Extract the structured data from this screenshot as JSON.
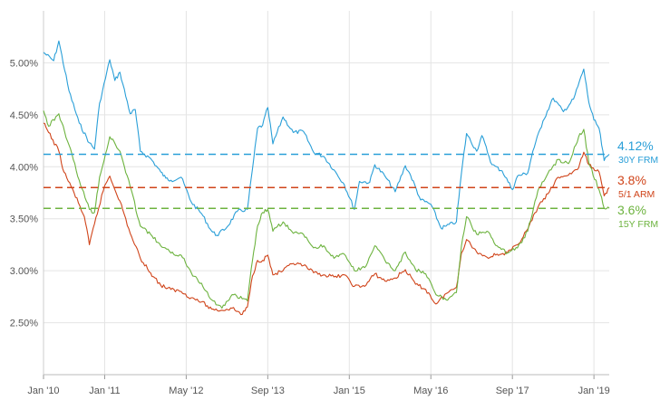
{
  "chart_data": {
    "type": "line",
    "title": "",
    "xlabel": "",
    "ylabel": "",
    "x_range": [
      "2010-01",
      "2019-04"
    ],
    "ylim": [
      2.0,
      5.5
    ],
    "grid": true,
    "y_ticks": [
      {
        "value": 2.5,
        "label": "2.50%"
      },
      {
        "value": 3.0,
        "label": "3.00%"
      },
      {
        "value": 3.5,
        "label": "3.50%"
      },
      {
        "value": 4.0,
        "label": "4.00%"
      },
      {
        "value": 4.5,
        "label": "4.50%"
      },
      {
        "value": 5.0,
        "label": "5.00%"
      }
    ],
    "x_ticks": [
      {
        "date": "2010-01",
        "label": "Jan '10"
      },
      {
        "date": "2011-01",
        "label": "Jan '11"
      },
      {
        "date": "2012-05",
        "label": "May '12"
      },
      {
        "date": "2013-09",
        "label": "Sep '13"
      },
      {
        "date": "2015-01",
        "label": "Jan '15"
      },
      {
        "date": "2016-05",
        "label": "May '16"
      },
      {
        "date": "2017-09",
        "label": "Sep '17"
      },
      {
        "date": "2019-01",
        "label": "Jan '19"
      }
    ],
    "series": [
      {
        "name": "30Y FRM",
        "color": "#2a9fd8",
        "latest_value": 4.12,
        "latest_label": "4.12%",
        "points": [
          [
            "2010-01",
            5.1
          ],
          [
            "2010-03",
            5.02
          ],
          [
            "2010-04",
            5.21
          ],
          [
            "2010-06",
            4.73
          ],
          [
            "2010-08",
            4.42
          ],
          [
            "2010-10",
            4.23
          ],
          [
            "2010-11",
            4.17
          ],
          [
            "2010-12",
            4.61
          ],
          [
            "2011-02",
            5.03
          ],
          [
            "2011-03",
            4.83
          ],
          [
            "2011-04",
            4.91
          ],
          [
            "2011-06",
            4.51
          ],
          [
            "2011-07",
            4.55
          ],
          [
            "2011-08",
            4.15
          ],
          [
            "2011-10",
            4.08
          ],
          [
            "2011-12",
            3.95
          ],
          [
            "2012-01",
            3.89
          ],
          [
            "2012-02",
            3.87
          ],
          [
            "2012-04",
            3.9
          ],
          [
            "2012-06",
            3.66
          ],
          [
            "2012-08",
            3.55
          ],
          [
            "2012-10",
            3.38
          ],
          [
            "2012-11",
            3.34
          ],
          [
            "2013-01",
            3.42
          ],
          [
            "2013-03",
            3.57
          ],
          [
            "2013-05",
            3.59
          ],
          [
            "2013-06",
            3.98
          ],
          [
            "2013-07",
            4.37
          ],
          [
            "2013-08",
            4.4
          ],
          [
            "2013-09",
            4.57
          ],
          [
            "2013-10",
            4.22
          ],
          [
            "2013-12",
            4.48
          ],
          [
            "2014-02",
            4.33
          ],
          [
            "2014-04",
            4.34
          ],
          [
            "2014-06",
            4.14
          ],
          [
            "2014-08",
            4.1
          ],
          [
            "2014-10",
            3.97
          ],
          [
            "2014-12",
            3.83
          ],
          [
            "2015-02",
            3.59
          ],
          [
            "2015-03",
            3.86
          ],
          [
            "2015-05",
            3.85
          ],
          [
            "2015-06",
            4.02
          ],
          [
            "2015-08",
            3.91
          ],
          [
            "2015-10",
            3.76
          ],
          [
            "2015-12",
            4.01
          ],
          [
            "2016-01",
            3.92
          ],
          [
            "2016-03",
            3.68
          ],
          [
            "2016-05",
            3.64
          ],
          [
            "2016-07",
            3.41
          ],
          [
            "2016-08",
            3.43
          ],
          [
            "2016-10",
            3.47
          ],
          [
            "2016-11",
            3.94
          ],
          [
            "2016-12",
            4.32
          ],
          [
            "2017-02",
            4.15
          ],
          [
            "2017-03",
            4.3
          ],
          [
            "2017-05",
            4.02
          ],
          [
            "2017-07",
            3.96
          ],
          [
            "2017-09",
            3.78
          ],
          [
            "2017-10",
            3.91
          ],
          [
            "2017-12",
            3.94
          ],
          [
            "2018-01",
            4.15
          ],
          [
            "2018-03",
            4.44
          ],
          [
            "2018-05",
            4.66
          ],
          [
            "2018-07",
            4.53
          ],
          [
            "2018-09",
            4.65
          ],
          [
            "2018-11",
            4.94
          ],
          [
            "2018-12",
            4.62
          ],
          [
            "2019-01",
            4.45
          ],
          [
            "2019-02",
            4.37
          ],
          [
            "2019-03",
            4.06
          ],
          [
            "2019-04",
            4.12
          ]
        ]
      },
      {
        "name": "5/1 ARM",
        "color": "#d0441a",
        "latest_value": 3.8,
        "latest_label": "3.8%",
        "points": [
          [
            "2010-01",
            4.42
          ],
          [
            "2010-02",
            4.33
          ],
          [
            "2010-04",
            4.15
          ],
          [
            "2010-05",
            3.95
          ],
          [
            "2010-07",
            3.75
          ],
          [
            "2010-09",
            3.52
          ],
          [
            "2010-10",
            3.25
          ],
          [
            "2010-11",
            3.45
          ],
          [
            "2011-01",
            3.82
          ],
          [
            "2011-02",
            3.91
          ],
          [
            "2011-04",
            3.67
          ],
          [
            "2011-06",
            3.36
          ],
          [
            "2011-08",
            3.12
          ],
          [
            "2011-10",
            2.98
          ],
          [
            "2011-12",
            2.86
          ],
          [
            "2012-02",
            2.82
          ],
          [
            "2012-04",
            2.8
          ],
          [
            "2012-06",
            2.74
          ],
          [
            "2012-08",
            2.7
          ],
          [
            "2012-10",
            2.63
          ],
          [
            "2012-12",
            2.62
          ],
          [
            "2013-02",
            2.64
          ],
          [
            "2013-04",
            2.58
          ],
          [
            "2013-05",
            2.65
          ],
          [
            "2013-06",
            2.95
          ],
          [
            "2013-07",
            3.1
          ],
          [
            "2013-08",
            3.1
          ],
          [
            "2013-09",
            3.15
          ],
          [
            "2013-10",
            2.96
          ],
          [
            "2013-12",
            3.0
          ],
          [
            "2014-02",
            3.07
          ],
          [
            "2014-04",
            3.05
          ],
          [
            "2014-06",
            2.98
          ],
          [
            "2014-08",
            2.96
          ],
          [
            "2014-10",
            2.94
          ],
          [
            "2014-12",
            2.96
          ],
          [
            "2015-02",
            2.85
          ],
          [
            "2015-04",
            2.85
          ],
          [
            "2015-06",
            2.97
          ],
          [
            "2015-08",
            2.9
          ],
          [
            "2015-10",
            2.93
          ],
          [
            "2015-12",
            3.01
          ],
          [
            "2016-02",
            2.87
          ],
          [
            "2016-04",
            2.82
          ],
          [
            "2016-06",
            2.68
          ],
          [
            "2016-08",
            2.78
          ],
          [
            "2016-10",
            2.84
          ],
          [
            "2016-11",
            3.17
          ],
          [
            "2016-12",
            3.3
          ],
          [
            "2017-02",
            3.18
          ],
          [
            "2017-04",
            3.13
          ],
          [
            "2017-06",
            3.16
          ],
          [
            "2017-08",
            3.17
          ],
          [
            "2017-10",
            3.25
          ],
          [
            "2017-12",
            3.4
          ],
          [
            "2018-02",
            3.61
          ],
          [
            "2018-04",
            3.74
          ],
          [
            "2018-06",
            3.9
          ],
          [
            "2018-08",
            3.92
          ],
          [
            "2018-10",
            3.99
          ],
          [
            "2018-11",
            4.14
          ],
          [
            "2018-12",
            4.02
          ],
          [
            "2019-02",
            3.95
          ],
          [
            "2019-03",
            3.72
          ],
          [
            "2019-04",
            3.8
          ]
        ]
      },
      {
        "name": "15Y FRM",
        "color": "#6db33f",
        "latest_value": 3.6,
        "latest_label": "3.6%",
        "points": [
          [
            "2010-01",
            4.54
          ],
          [
            "2010-02",
            4.39
          ],
          [
            "2010-04",
            4.51
          ],
          [
            "2010-06",
            4.21
          ],
          [
            "2010-08",
            3.87
          ],
          [
            "2010-10",
            3.59
          ],
          [
            "2010-11",
            3.56
          ],
          [
            "2010-12",
            3.9
          ],
          [
            "2011-02",
            4.29
          ],
          [
            "2011-04",
            4.15
          ],
          [
            "2011-06",
            3.81
          ],
          [
            "2011-08",
            3.43
          ],
          [
            "2011-10",
            3.35
          ],
          [
            "2011-12",
            3.24
          ],
          [
            "2012-02",
            3.17
          ],
          [
            "2012-04",
            3.15
          ],
          [
            "2012-06",
            2.98
          ],
          [
            "2012-08",
            2.88
          ],
          [
            "2012-10",
            2.72
          ],
          [
            "2012-12",
            2.64
          ],
          [
            "2013-02",
            2.77
          ],
          [
            "2013-04",
            2.73
          ],
          [
            "2013-05",
            2.71
          ],
          [
            "2013-06",
            3.1
          ],
          [
            "2013-07",
            3.43
          ],
          [
            "2013-08",
            3.56
          ],
          [
            "2013-09",
            3.59
          ],
          [
            "2013-10",
            3.38
          ],
          [
            "2013-12",
            3.47
          ],
          [
            "2014-02",
            3.36
          ],
          [
            "2014-04",
            3.35
          ],
          [
            "2014-06",
            3.22
          ],
          [
            "2014-08",
            3.24
          ],
          [
            "2014-10",
            3.12
          ],
          [
            "2014-12",
            3.16
          ],
          [
            "2015-02",
            3.0
          ],
          [
            "2015-04",
            3.03
          ],
          [
            "2015-06",
            3.24
          ],
          [
            "2015-08",
            3.1
          ],
          [
            "2015-10",
            3.0
          ],
          [
            "2015-12",
            3.18
          ],
          [
            "2016-02",
            3.01
          ],
          [
            "2016-04",
            2.97
          ],
          [
            "2016-06",
            2.77
          ],
          [
            "2016-08",
            2.72
          ],
          [
            "2016-10",
            2.79
          ],
          [
            "2016-11",
            3.24
          ],
          [
            "2016-12",
            3.52
          ],
          [
            "2017-02",
            3.35
          ],
          [
            "2017-04",
            3.38
          ],
          [
            "2017-06",
            3.24
          ],
          [
            "2017-08",
            3.17
          ],
          [
            "2017-10",
            3.22
          ],
          [
            "2017-12",
            3.38
          ],
          [
            "2018-02",
            3.77
          ],
          [
            "2018-04",
            3.94
          ],
          [
            "2018-06",
            4.07
          ],
          [
            "2018-08",
            4.03
          ],
          [
            "2018-10",
            4.29
          ],
          [
            "2018-11",
            4.36
          ],
          [
            "2018-12",
            4.04
          ],
          [
            "2019-02",
            3.78
          ],
          [
            "2019-03",
            3.6
          ],
          [
            "2019-04",
            3.6
          ]
        ]
      }
    ]
  }
}
